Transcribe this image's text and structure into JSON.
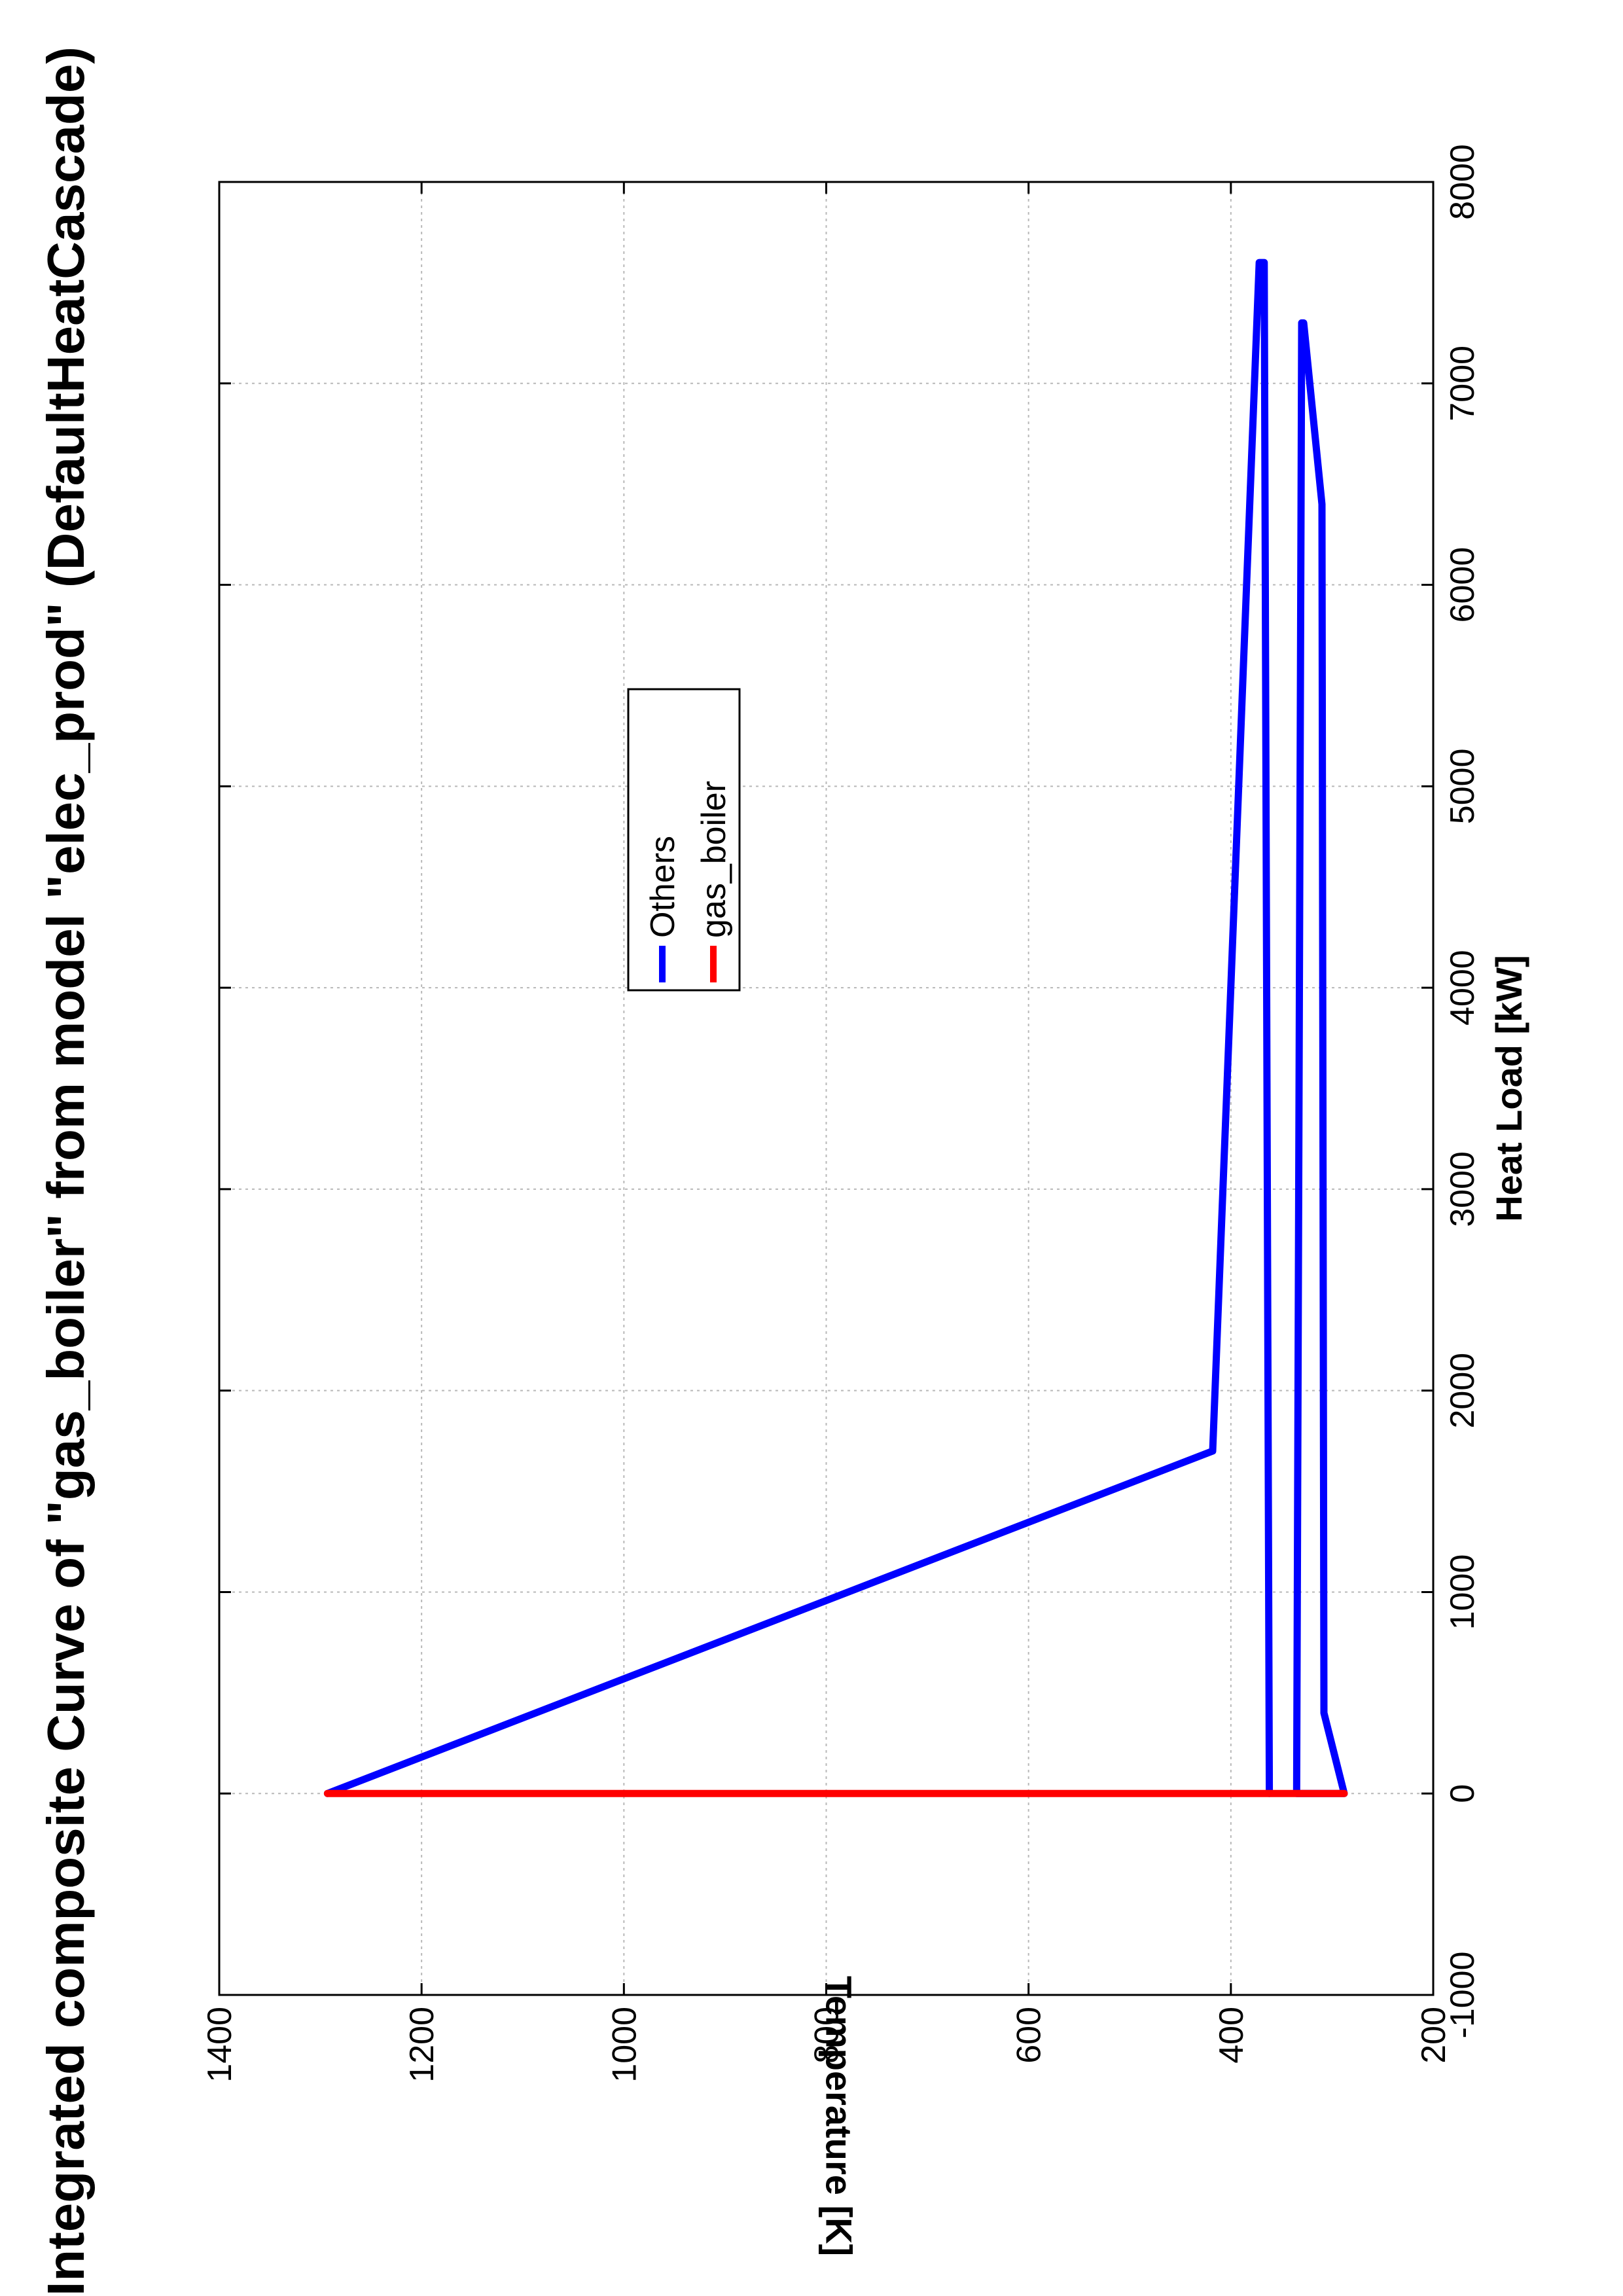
{
  "chart_data": {
    "type": "line",
    "title": "Integrated composite Curve of \"gas_boiler\" from model \"elec_prod\" (DefaultHeatCascade)",
    "xlabel": "Heat Load [kW]",
    "ylabel": "Temperature [K]",
    "xlim": [
      -1000,
      8000
    ],
    "ylim": [
      200,
      1400
    ],
    "xticks": [
      "-1000",
      "0",
      "1000",
      "2000",
      "3000",
      "4000",
      "5000",
      "6000",
      "7000",
      "8000"
    ],
    "yticks": [
      "200",
      "400",
      "600",
      "800",
      "1000",
      "1200",
      "1400"
    ],
    "grid": true,
    "legend_position": "upper-center",
    "series": [
      {
        "name": "Others",
        "color": "#0000ff",
        "segments": [
          {
            "x": [
              0,
              1700,
              7600,
              7600,
              0
            ],
            "y": [
              1293,
              418,
              372,
              367,
              362
            ]
          },
          {
            "x": [
              0,
              0,
              400,
              6400,
              6400,
              7300,
              7300,
              0
            ],
            "y": [
              335,
              288,
              308,
              310,
              310,
              328,
              330,
              335
            ]
          }
        ]
      },
      {
        "name": "gas_boiler",
        "color": "#ff0000",
        "segments": [
          {
            "x": [
              0,
              0,
              0,
              0,
              0
            ],
            "y": [
              288,
              362,
              362,
              1293,
              1293
            ]
          }
        ]
      }
    ]
  }
}
